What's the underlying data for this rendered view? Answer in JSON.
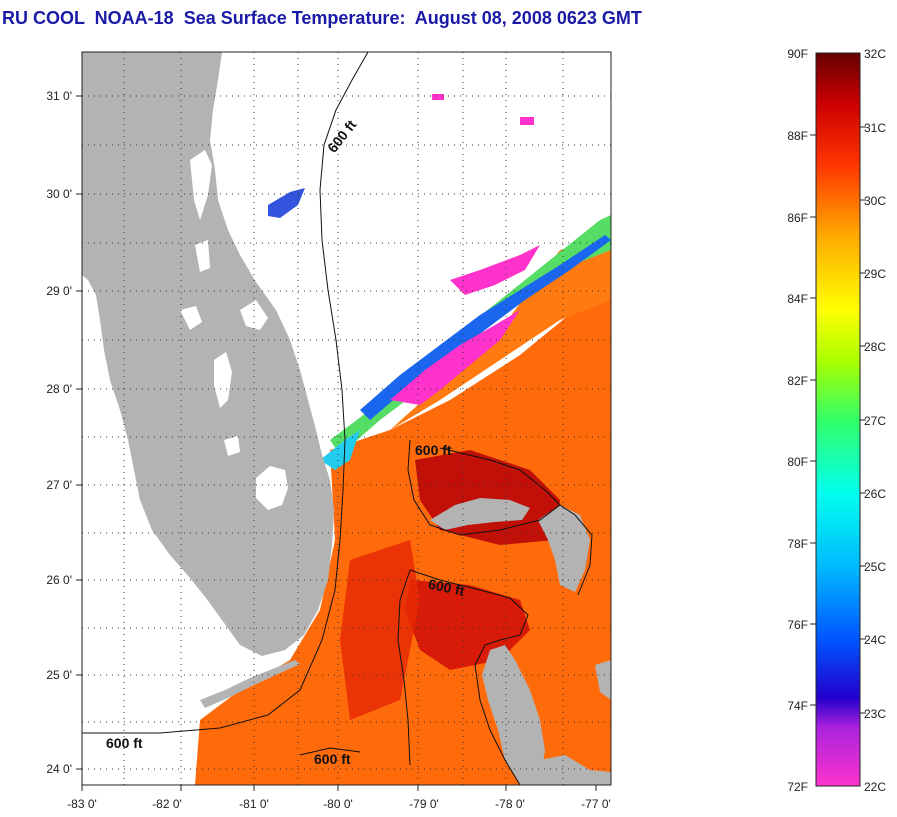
{
  "title": "RU COOL  NOAA-18  Sea Surface Temperature:  August 08, 2008 0623 GMT",
  "map": {
    "lon_range": [
      -83,
      -77
    ],
    "lat_range": [
      23.8,
      31.4
    ],
    "x_ticks": [
      "-83 0'",
      "-82 0'",
      "-81 0'",
      "-80 0'",
      "-79 0'",
      "-78 0'",
      "-77 0'"
    ],
    "y_ticks": [
      "31 0'",
      "30 0'",
      "29 0'",
      "28 0'",
      "27 0'",
      "26 0'",
      "25 0'",
      "24 0'"
    ],
    "contour_labels": [
      "600 ft",
      "600 ft",
      "600 ft",
      "600 ft",
      "600 ft"
    ],
    "land_color": "#b3b3b3",
    "cloud_color": "#ffffff"
  },
  "colorbar": {
    "f_labels": [
      "90F",
      "88F",
      "86F",
      "84F",
      "82F",
      "80F",
      "78F",
      "76F",
      "74F",
      "72F"
    ],
    "c_labels": [
      "32C",
      "31C",
      "30C",
      "29C",
      "28C",
      "27C",
      "26C",
      "25C",
      "24C",
      "23C",
      "22C"
    ],
    "range_c": [
      22,
      32
    ],
    "colors": [
      "#ff33cc",
      "#8822dd",
      "#0000cc",
      "#0077ff",
      "#00ffff",
      "#33ff66",
      "#aaff00",
      "#ffff00",
      "#ffaa00",
      "#ff5500",
      "#ee1100",
      "#bb0000",
      "#660000"
    ]
  }
}
